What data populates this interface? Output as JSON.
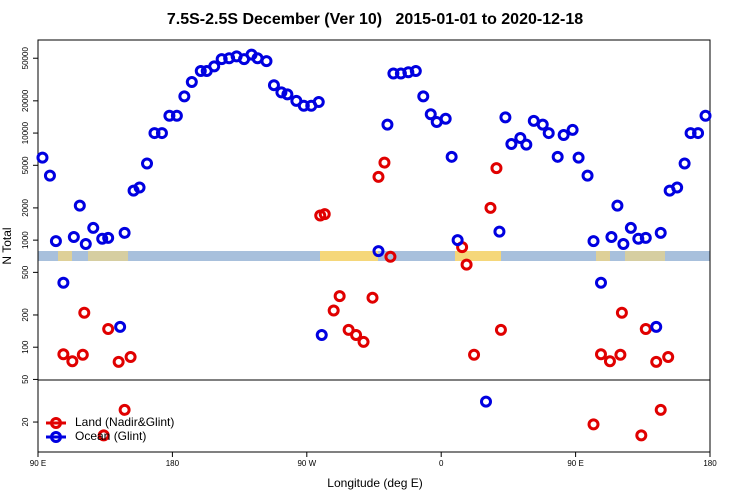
{
  "chart_data": {
    "type": "scatter",
    "title": "7.5S-2.5S December (Ver 10)   2015-01-01 to 2020-12-18",
    "x_label": "Longitude (deg E)",
    "y_label": "N Total",
    "xlim": [
      90,
      540
    ],
    "ylim": [
      10.5,
      74000
    ],
    "log_y": true,
    "legend": "bottomleft",
    "xticks": [
      {
        "value": 90,
        "label": "90 E"
      },
      180,
      {
        "value": 270,
        "label": "90 W"
      },
      {
        "value": 360,
        "label": "0"
      },
      {
        "value": 450,
        "label": "90 E"
      },
      {
        "value": 540,
        "label": "180"
      }
    ],
    "yticks": [
      20,
      50,
      100,
      200,
      500,
      1000,
      2000,
      5000,
      10000,
      20000,
      50000
    ],
    "series": [
      {
        "name": "Land (Nadir&Glint)",
        "color": "#e00000",
        "x": [
          107,
          113,
          120,
          121,
          134,
          137,
          144,
          148,
          152,
          279,
          282,
          288,
          292,
          298,
          303,
          308,
          314,
          318,
          322,
          326,
          374,
          377,
          382,
          393,
          397,
          400,
          462,
          467,
          473,
          480,
          481,
          494,
          497,
          504,
          507,
          512
        ],
        "values": [
          86,
          74,
          85,
          210,
          15,
          148,
          73,
          26,
          81,
          1700,
          1750,
          220,
          300,
          145,
          130,
          112,
          290,
          3900,
          5300,
          700,
          860,
          590,
          85,
          2000,
          4700,
          145,
          19,
          86,
          74,
          85,
          210,
          15,
          148,
          73,
          26,
          81
        ]
      },
      {
        "name": "Ocean (Glint)",
        "color": "#0000e0",
        "x": [
          93,
          98,
          102,
          107,
          114,
          118,
          122,
          127,
          133,
          137,
          145,
          148,
          154,
          158,
          163,
          168,
          173,
          178,
          183,
          188,
          193,
          199,
          203,
          208,
          213,
          218,
          223,
          228,
          233,
          237,
          243,
          248,
          253,
          257,
          263,
          268,
          273,
          278,
          280,
          318,
          324,
          328,
          333,
          338,
          343,
          348,
          353,
          357,
          363,
          367,
          371,
          390,
          399,
          403,
          407,
          413,
          417,
          422,
          428,
          432,
          438,
          442,
          448,
          452,
          458,
          462,
          467,
          474,
          478,
          482,
          487,
          492,
          497,
          504,
          507,
          513,
          518,
          523,
          527,
          532,
          537
        ],
        "values": [
          5900,
          4000,
          980,
          400,
          1070,
          2100,
          920,
          1300,
          1030,
          1050,
          155,
          1170,
          2900,
          3100,
          5200,
          10000,
          10000,
          14500,
          14500,
          22000,
          30000,
          38000,
          38000,
          42000,
          49000,
          50000,
          52000,
          49000,
          54000,
          50000,
          47000,
          28000,
          24000,
          23000,
          20000,
          18000,
          18000,
          19500,
          130,
          790,
          12000,
          36000,
          36000,
          37000,
          38000,
          22000,
          15000,
          12700,
          13600,
          6000,
          1000,
          31,
          1200,
          14000,
          7900,
          9000,
          7800,
          13000,
          12000,
          10000,
          6000,
          9600,
          10700,
          5900,
          4000,
          980,
          400,
          1070,
          2100,
          920,
          1300,
          1030,
          1050,
          155,
          1170,
          2900,
          3100,
          5200,
          10000,
          10000,
          14500
        ]
      }
    ]
  }
}
